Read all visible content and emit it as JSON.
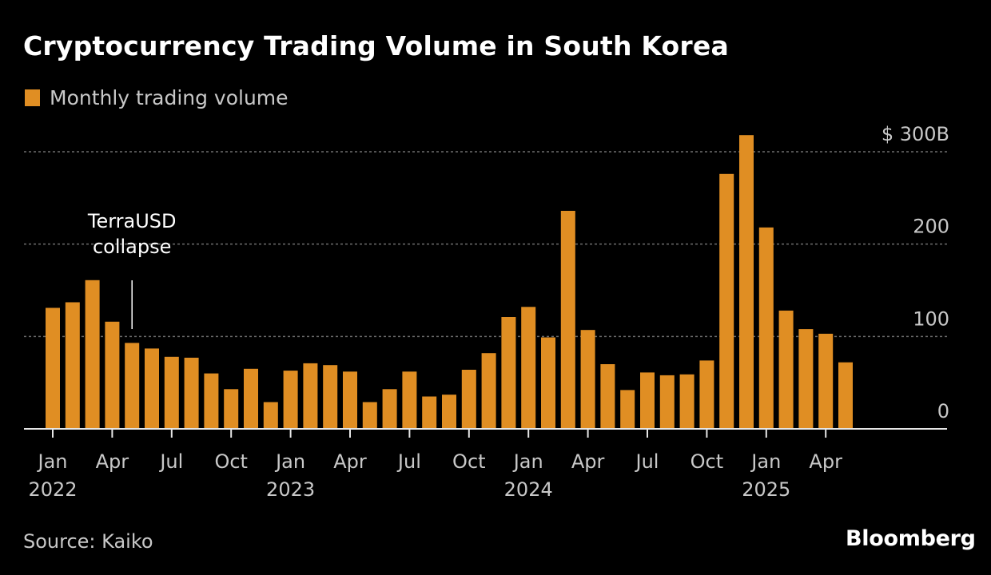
{
  "colors": {
    "background": "#000000",
    "bar": "#e08e23",
    "grid": "#6e6e6e",
    "text": "#ffffff",
    "muted": "#c8c8c8"
  },
  "brand": "Bloomberg",
  "source": "Source: Kaiko",
  "chart_data": {
    "type": "bar",
    "title": "Cryptocurrency Trading Volume in South Korea",
    "xlabel": "",
    "ylabel": "",
    "ylim": [
      0,
      300
    ],
    "y_unit_prefix": "$",
    "y_unit_suffix": "B",
    "grid": true,
    "legend_position": "top-left",
    "y_ticks": [
      0,
      100,
      200,
      300
    ],
    "y_tick_labels": [
      "0",
      "100",
      "200",
      "$ 300B"
    ],
    "x_tick_labels": [
      {
        "index": 0,
        "month": "Jan",
        "year": "2022"
      },
      {
        "index": 3,
        "month": "Apr",
        "year": ""
      },
      {
        "index": 6,
        "month": "Jul",
        "year": ""
      },
      {
        "index": 9,
        "month": "Oct",
        "year": ""
      },
      {
        "index": 12,
        "month": "Jan",
        "year": "2023"
      },
      {
        "index": 15,
        "month": "Apr",
        "year": ""
      },
      {
        "index": 18,
        "month": "Jul",
        "year": ""
      },
      {
        "index": 21,
        "month": "Oct",
        "year": ""
      },
      {
        "index": 24,
        "month": "Jan",
        "year": "2024"
      },
      {
        "index": 27,
        "month": "Apr",
        "year": ""
      },
      {
        "index": 30,
        "month": "Jul",
        "year": ""
      },
      {
        "index": 33,
        "month": "Oct",
        "year": ""
      },
      {
        "index": 36,
        "month": "Jan",
        "year": "2025"
      },
      {
        "index": 39,
        "month": "Apr",
        "year": ""
      }
    ],
    "categories": [
      "2022-01",
      "2022-02",
      "2022-03",
      "2022-04",
      "2022-05",
      "2022-06",
      "2022-07",
      "2022-08",
      "2022-09",
      "2022-10",
      "2022-11",
      "2022-12",
      "2023-01",
      "2023-02",
      "2023-03",
      "2023-04",
      "2023-05",
      "2023-06",
      "2023-07",
      "2023-08",
      "2023-09",
      "2023-10",
      "2023-11",
      "2023-12",
      "2024-01",
      "2024-02",
      "2024-03",
      "2024-04",
      "2024-05",
      "2024-06",
      "2024-07",
      "2024-08",
      "2024-09",
      "2024-10",
      "2024-11",
      "2024-12",
      "2025-01",
      "2025-02",
      "2025-03",
      "2025-04",
      "2025-05"
    ],
    "series": [
      {
        "name": "Monthly trading volume",
        "values": [
          131,
          137,
          161,
          116,
          93,
          87,
          78,
          77,
          60,
          43,
          65,
          29,
          63,
          71,
          69,
          62,
          29,
          43,
          62,
          35,
          37,
          64,
          82,
          121,
          132,
          99,
          236,
          107,
          70,
          42,
          61,
          58,
          59,
          74,
          276,
          318,
          218,
          128,
          108,
          103,
          72
        ]
      }
    ],
    "annotations": [
      {
        "text_lines": [
          "TerraUSD",
          "collapse"
        ],
        "category": "2022-05"
      }
    ]
  }
}
